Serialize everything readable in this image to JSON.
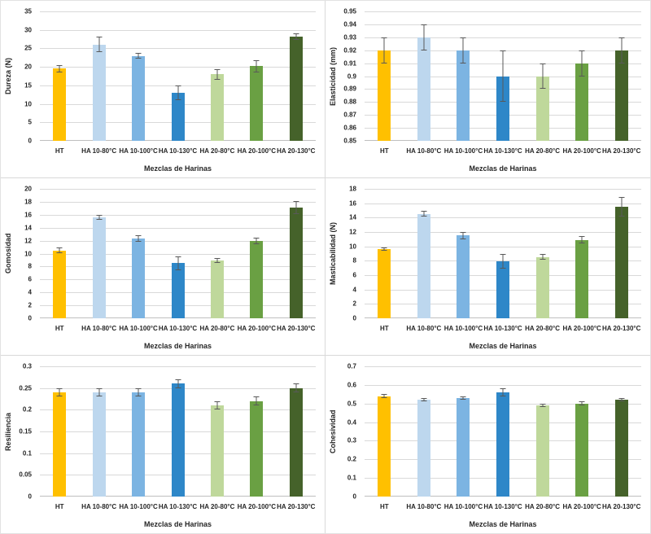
{
  "colors": {
    "bars": [
      "#FFC000",
      "#BDD7EE",
      "#7CB4E2",
      "#2E87C8",
      "#BFD89B",
      "#6AA043",
      "#45622A"
    ],
    "error_bar": "#595959",
    "gridline": "#D9D9D9",
    "axis_line": "#BFBFBF",
    "text": "#262626",
    "panel_border": "#D9D9D9"
  },
  "categories": [
    "HT",
    "HA 10-80°C",
    "HA 10-100°C",
    "HA 10-130°C",
    "HA 20-80°C",
    "HA 20-100°C",
    "HA 20-130°C"
  ],
  "chart_data": [
    {
      "type": "bar",
      "title": "",
      "ylabel": "Dureza (N)",
      "xlabel": "Mezclas de Harinas",
      "ylim": [
        0,
        35
      ],
      "yticks": [
        0,
        5,
        10,
        15,
        20,
        25,
        30,
        35
      ],
      "ytick_labels": [
        "0",
        "5",
        "10",
        "15",
        "20",
        "25",
        "30",
        "35"
      ],
      "grid": true,
      "legend": "none",
      "categories": [
        "HT",
        "HA 10-80°C",
        "HA 10-100°C",
        "HA 10-130°C",
        "HA 20-80°C",
        "HA 20-100°C",
        "HA 20-130°C"
      ],
      "values": [
        19.5,
        26.0,
        23.0,
        13.0,
        18.0,
        20.2,
        28.2
      ],
      "errors": [
        0.9,
        2.1,
        0.8,
        2.0,
        1.4,
        1.6,
        0.9
      ]
    },
    {
      "type": "bar",
      "title": "",
      "ylabel": "Elasticidad (mm)",
      "xlabel": "Mezclas de Harinas",
      "ylim": [
        0.85,
        0.95
      ],
      "yticks": [
        0.85,
        0.86,
        0.87,
        0.88,
        0.89,
        0.9,
        0.91,
        0.92,
        0.93,
        0.94,
        0.95
      ],
      "ytick_labels": [
        "0.85",
        "0.86",
        "0.87",
        "0.88",
        "0.89",
        "0.9",
        "0.91",
        "0.92",
        "0.93",
        "0.94",
        "0.95"
      ],
      "grid": true,
      "legend": "none",
      "categories": [
        "HT",
        "HA 10-80°C",
        "HA 10-100°C",
        "HA 10-130°C",
        "HA 20-80°C",
        "HA 20-100°C",
        "HA 20-130°C"
      ],
      "values": [
        0.92,
        0.93,
        0.92,
        0.9,
        0.9,
        0.91,
        0.92
      ],
      "errors": [
        0.01,
        0.01,
        0.01,
        0.02,
        0.01,
        0.01,
        0.01
      ]
    },
    {
      "type": "bar",
      "title": "",
      "ylabel": "Gomosidad",
      "xlabel": "Mezclas de Harinas",
      "ylim": [
        0,
        20
      ],
      "yticks": [
        0,
        2,
        4,
        6,
        8,
        10,
        12,
        14,
        16,
        18,
        20
      ],
      "ytick_labels": [
        "0",
        "2",
        "4",
        "6",
        "8",
        "10",
        "12",
        "14",
        "16",
        "18",
        "20"
      ],
      "grid": true,
      "legend": "none",
      "categories": [
        "HT",
        "HA 10-80°C",
        "HA 10-100°C",
        "HA 10-130°C",
        "HA 20-80°C",
        "HA 20-100°C",
        "HA 20-130°C"
      ],
      "values": [
        10.5,
        15.6,
        12.3,
        8.5,
        8.9,
        12.0,
        17.1
      ],
      "errors": [
        0.4,
        0.4,
        0.5,
        1.1,
        0.4,
        0.5,
        1.0
      ]
    },
    {
      "type": "bar",
      "title": "",
      "ylabel": "Masticabilidad (N)",
      "xlabel": "Mezclas de Harinas",
      "ylim": [
        0,
        18
      ],
      "yticks": [
        0,
        2,
        4,
        6,
        8,
        10,
        12,
        14,
        16,
        18
      ],
      "ytick_labels": [
        "0",
        "2",
        "4",
        "6",
        "8",
        "10",
        "12",
        "14",
        "16",
        "18"
      ],
      "grid": true,
      "legend": "none",
      "categories": [
        "HT",
        "HA 10-80°C",
        "HA 10-100°C",
        "HA 10-130°C",
        "HA 20-80°C",
        "HA 20-100°C",
        "HA 20-130°C"
      ],
      "values": [
        9.6,
        14.5,
        11.5,
        7.9,
        8.5,
        10.9,
        15.5
      ],
      "errors": [
        0.2,
        0.4,
        0.5,
        1.0,
        0.4,
        0.5,
        1.4
      ]
    },
    {
      "type": "bar",
      "title": "",
      "ylabel": "Resiliencia",
      "xlabel": "Mezclas de Harinas",
      "ylim": [
        0,
        0.3
      ],
      "yticks": [
        0,
        0.05,
        0.1,
        0.15,
        0.2,
        0.25,
        0.3
      ],
      "ytick_labels": [
        "0",
        "0.05",
        "0.1",
        "0.15",
        "0.2",
        "0.25",
        "0.3"
      ],
      "grid": true,
      "legend": "none",
      "categories": [
        "HT",
        "HA 10-80°C",
        "HA 10-100°C",
        "HA 10-130°C",
        "HA 20-80°C",
        "HA 20-100°C",
        "HA 20-130°C"
      ],
      "values": [
        0.24,
        0.24,
        0.24,
        0.26,
        0.21,
        0.22,
        0.25
      ],
      "errors": [
        0.01,
        0.01,
        0.01,
        0.01,
        0.01,
        0.01,
        0.01
      ]
    },
    {
      "type": "bar",
      "title": "",
      "ylabel": "Cohesividad",
      "xlabel": "Mezclas de Harinas",
      "ylim": [
        0,
        0.7
      ],
      "yticks": [
        0,
        0.1,
        0.2,
        0.3,
        0.4,
        0.5,
        0.6,
        0.7
      ],
      "ytick_labels": [
        "0",
        "0.1",
        "0.2",
        "0.3",
        "0.4",
        "0.5",
        "0.6",
        "0.7"
      ],
      "grid": true,
      "legend": "none",
      "categories": [
        "HT",
        "HA 10-80°C",
        "HA 10-100°C",
        "HA 10-130°C",
        "HA 20-80°C",
        "HA 20-100°C",
        "HA 20-130°C"
      ],
      "values": [
        0.54,
        0.52,
        0.53,
        0.56,
        0.49,
        0.5,
        0.52
      ],
      "errors": [
        0.01,
        0.01,
        0.01,
        0.02,
        0.01,
        0.01,
        0.01
      ]
    }
  ]
}
